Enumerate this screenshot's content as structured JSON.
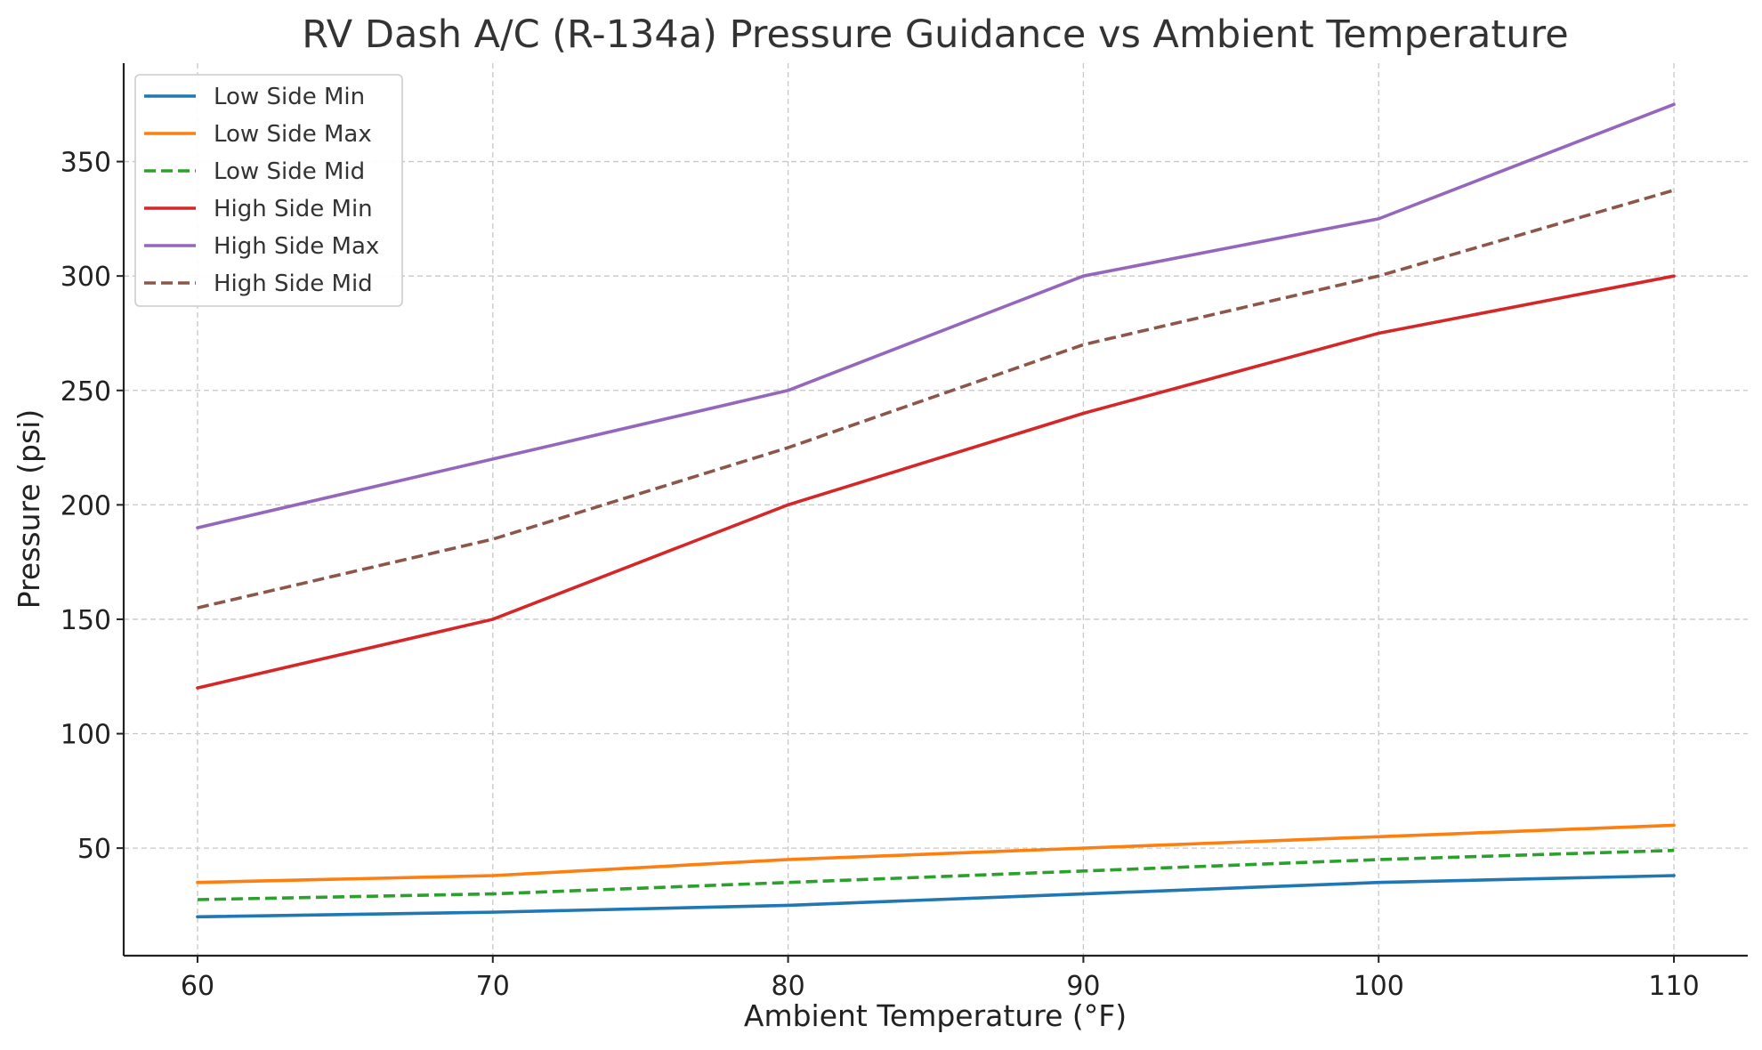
{
  "chart_data": {
    "type": "line",
    "title": "RV Dash A/C (R-134a) Pressure Guidance vs Ambient Temperature",
    "xlabel": "Ambient Temperature (°F)",
    "ylabel": "Pressure (psi)",
    "x": [
      60,
      70,
      80,
      90,
      100,
      110
    ],
    "xlim": [
      57.5,
      112.5
    ],
    "ylim": [
      3,
      393
    ],
    "xticks": [
      60,
      70,
      80,
      90,
      100,
      110
    ],
    "yticks": [
      50,
      100,
      150,
      200,
      250,
      300,
      350
    ],
    "grid": true,
    "legend_position": "top-left",
    "series": [
      {
        "name": "Low Side Min",
        "values": [
          20,
          22,
          25,
          30,
          35,
          38
        ],
        "color": "#1f77b4",
        "dashed": false
      },
      {
        "name": "Low Side Max",
        "values": [
          35,
          38,
          45,
          50,
          55,
          60
        ],
        "color": "#ff7f0e",
        "dashed": false
      },
      {
        "name": "Low Side Mid",
        "values": [
          27.5,
          30,
          35,
          40,
          45,
          49
        ],
        "color": "#2ca02c",
        "dashed": true
      },
      {
        "name": "High Side Min",
        "values": [
          120,
          150,
          200,
          240,
          275,
          300
        ],
        "color": "#d62728",
        "dashed": false
      },
      {
        "name": "High Side Max",
        "values": [
          190,
          220,
          250,
          300,
          325,
          375
        ],
        "color": "#9467bd",
        "dashed": false
      },
      {
        "name": "High Side Mid",
        "values": [
          155,
          185,
          225,
          270,
          300,
          337.5
        ],
        "color": "#8c564b",
        "dashed": true
      }
    ]
  }
}
